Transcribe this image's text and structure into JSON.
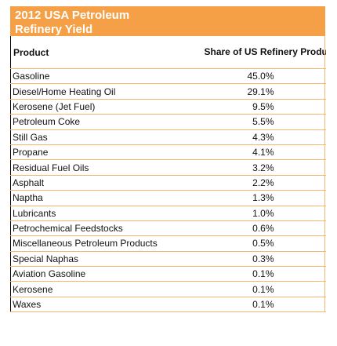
{
  "table": {
    "title": "2012 USA Petroleum Refinery Yield",
    "headers": {
      "product": "Product",
      "share": "Share of US Refinery Production"
    },
    "rows": [
      {
        "product": "Gasoline",
        "share": "45.0%"
      },
      {
        "product": "Diesel/Home Heating Oil",
        "share": "29.1%"
      },
      {
        "product": "Kerosene (Jet Fuel)",
        "share": "9.5%"
      },
      {
        "product": "Petroleum Coke",
        "share": "5.5%"
      },
      {
        "product": "Still Gas",
        "share": "4.3%"
      },
      {
        "product": "Propane",
        "share": "4.1%"
      },
      {
        "product": "Residual Fuel Oils",
        "share": "3.2%"
      },
      {
        "product": "Asphalt",
        "share": "2.2%"
      },
      {
        "product": "Naptha",
        "share": "1.3%"
      },
      {
        "product": "Lubricants",
        "share": "1.0%"
      },
      {
        "product": "Petrochemical Feedstocks",
        "share": "0.6%"
      },
      {
        "product": "Miscellaneous Petroleum Products",
        "share": "0.5%"
      },
      {
        "product": "Special Naphas",
        "share": "0.3%"
      },
      {
        "product": "Aviation Gasoline",
        "share": "0.1%"
      },
      {
        "product": "Kerosene",
        "share": "0.1%"
      },
      {
        "product": "Waxes",
        "share": "0.1%"
      }
    ]
  },
  "colors": {
    "title_bg": "#f5a046",
    "title_text": "#ffffff",
    "grid_line": "#f5b672"
  }
}
